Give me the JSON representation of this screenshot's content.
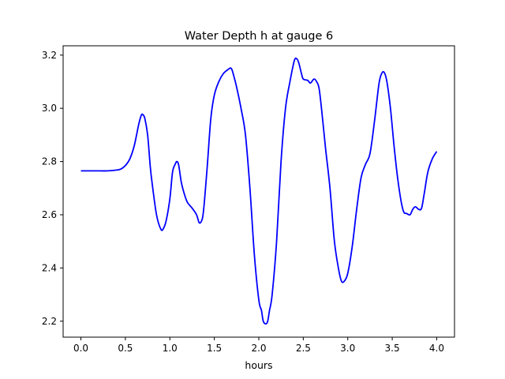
{
  "chart_data": {
    "type": "line",
    "title": "Water Depth h at gauge 6",
    "xlabel": "hours",
    "ylabel": "",
    "xlim": [
      -0.2,
      4.2
    ],
    "ylim": [
      2.14,
      3.235
    ],
    "xticks": [
      0.0,
      0.5,
      1.0,
      1.5,
      2.0,
      2.5,
      3.0,
      3.5,
      4.0
    ],
    "xtick_labels": [
      "0.0",
      "0.5",
      "1.0",
      "1.5",
      "2.0",
      "2.5",
      "3.0",
      "3.5",
      "4.0"
    ],
    "yticks": [
      2.2,
      2.4,
      2.6,
      2.8,
      3.0,
      3.2
    ],
    "ytick_labels": [
      "2.2",
      "2.4",
      "2.6",
      "2.8",
      "3.0",
      "3.2"
    ],
    "grid": false,
    "legend": "none",
    "series": [
      {
        "color": "#0000ff",
        "x": [
          0.0,
          0.1,
          0.2,
          0.3,
          0.4,
          0.45,
          0.5,
          0.55,
          0.6,
          0.65,
          0.68,
          0.7,
          0.72,
          0.75,
          0.78,
          0.8,
          0.85,
          0.9,
          0.93,
          0.96,
          1.0,
          1.03,
          1.06,
          1.08,
          1.1,
          1.13,
          1.17,
          1.2,
          1.25,
          1.3,
          1.33,
          1.36,
          1.38,
          1.42,
          1.46,
          1.5,
          1.55,
          1.6,
          1.65,
          1.69,
          1.72,
          1.75,
          1.8,
          1.85,
          1.9,
          1.95,
          2.0,
          2.03,
          2.05,
          2.08,
          2.1,
          2.12,
          2.15,
          2.2,
          2.25,
          2.3,
          2.35,
          2.4,
          2.43,
          2.45,
          2.48,
          2.5,
          2.55,
          2.58,
          2.62,
          2.65,
          2.68,
          2.72,
          2.75,
          2.8,
          2.85,
          2.9,
          2.93,
          2.96,
          3.0,
          3.05,
          3.1,
          3.15,
          3.2,
          3.25,
          3.3,
          3.35,
          3.38,
          3.41,
          3.44,
          3.48,
          3.52,
          3.56,
          3.6,
          3.63,
          3.66,
          3.7,
          3.73,
          3.76,
          3.8,
          3.83,
          3.86,
          3.9,
          3.95,
          4.0
        ],
        "y": [
          2.765,
          2.765,
          2.765,
          2.765,
          2.768,
          2.772,
          2.785,
          2.81,
          2.86,
          2.94,
          2.975,
          2.975,
          2.96,
          2.9,
          2.78,
          2.72,
          2.6,
          2.545,
          2.55,
          2.58,
          2.66,
          2.76,
          2.79,
          2.8,
          2.785,
          2.72,
          2.67,
          2.645,
          2.625,
          2.6,
          2.57,
          2.58,
          2.62,
          2.78,
          2.96,
          3.05,
          3.1,
          3.13,
          3.145,
          3.15,
          3.12,
          3.08,
          3.0,
          2.9,
          2.7,
          2.45,
          2.28,
          2.24,
          2.2,
          2.19,
          2.2,
          2.24,
          2.3,
          2.5,
          2.8,
          3.0,
          3.1,
          3.18,
          3.185,
          3.17,
          3.13,
          3.11,
          3.105,
          3.095,
          3.11,
          3.1,
          3.07,
          2.95,
          2.85,
          2.7,
          2.5,
          2.39,
          2.35,
          2.35,
          2.38,
          2.48,
          2.62,
          2.74,
          2.79,
          2.83,
          2.95,
          3.09,
          3.13,
          3.135,
          3.1,
          3.0,
          2.86,
          2.74,
          2.65,
          2.61,
          2.605,
          2.6,
          2.62,
          2.63,
          2.62,
          2.625,
          2.68,
          2.76,
          2.81,
          2.838
        ]
      }
    ]
  }
}
